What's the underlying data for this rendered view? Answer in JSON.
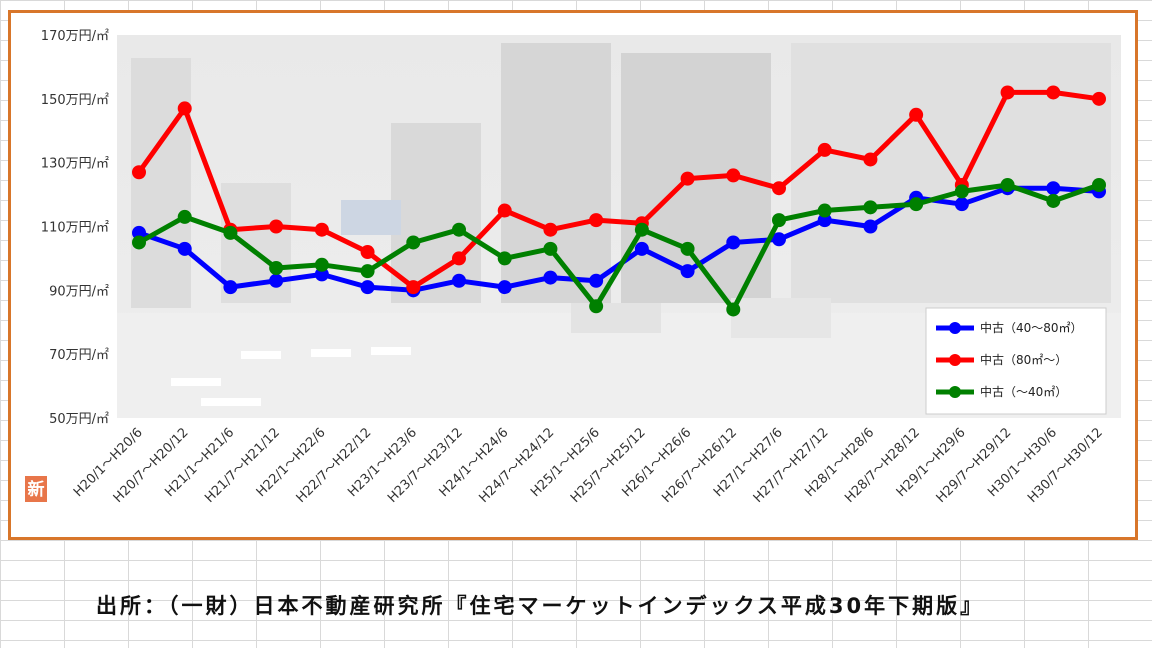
{
  "chart_data": {
    "type": "line",
    "title": "",
    "xlabel": "",
    "ylabel": "",
    "ylim": [
      50,
      170
    ],
    "y_ticks": [
      "170万円/㎡",
      "150万円/㎡",
      "130万円/㎡",
      "110万円/㎡",
      "90万円/㎡",
      "70万円/㎡",
      "50万円/㎡"
    ],
    "y_tick_values": [
      170,
      150,
      130,
      110,
      90,
      70,
      50
    ],
    "grid": false,
    "legend_position": "bottom-right",
    "categories": [
      "H20/1～H20/6",
      "H20/7～H20/12",
      "H21/1～H21/6",
      "H21/7～H21/12",
      "H22/1～H22/6",
      "H22/7～H22/12",
      "H23/1～H23/6",
      "H23/7～H23/12",
      "H24/1～H24/6",
      "H24/7～H24/12",
      "H25/1～H25/6",
      "H25/7～H25/12",
      "H26/1～H26/6",
      "H26/7～H26/12",
      "H27/1～H27/6",
      "H27/7～H27/12",
      "H28/1～H28/6",
      "H28/7～H28/12",
      "H29/1～H29/6",
      "H29/7～H29/12",
      "H30/1～H30/6",
      "H30/7～H30/12"
    ],
    "series": [
      {
        "name": "中古（40～80㎡）",
        "color": "#0000ff",
        "values": [
          108,
          103,
          91,
          93,
          95,
          91,
          90,
          93,
          91,
          94,
          93,
          103,
          96,
          105,
          106,
          112,
          110,
          119,
          117,
          122,
          122,
          121
        ]
      },
      {
        "name": "中古（80㎡～）",
        "color": "#ff0000",
        "values": [
          127,
          147,
          109,
          110,
          109,
          102,
          91,
          100,
          115,
          109,
          112,
          111,
          125,
          126,
          122,
          134,
          131,
          145,
          123,
          152,
          152,
          150
        ]
      },
      {
        "name": "中古（～40㎡）",
        "color": "#008000",
        "values": [
          105,
          113,
          108,
          97,
          98,
          96,
          105,
          109,
          100,
          103,
          85,
          109,
          103,
          84,
          112,
          115,
          116,
          117,
          121,
          123,
          118,
          123
        ]
      }
    ]
  },
  "corner_badge": "新",
  "source_caption": "出所：（一財）日本不動産研究所『住宅マーケットインデックス平成30年下期版』",
  "colors": {
    "frame_border": "#d8762a",
    "badge": "#e8764a"
  }
}
